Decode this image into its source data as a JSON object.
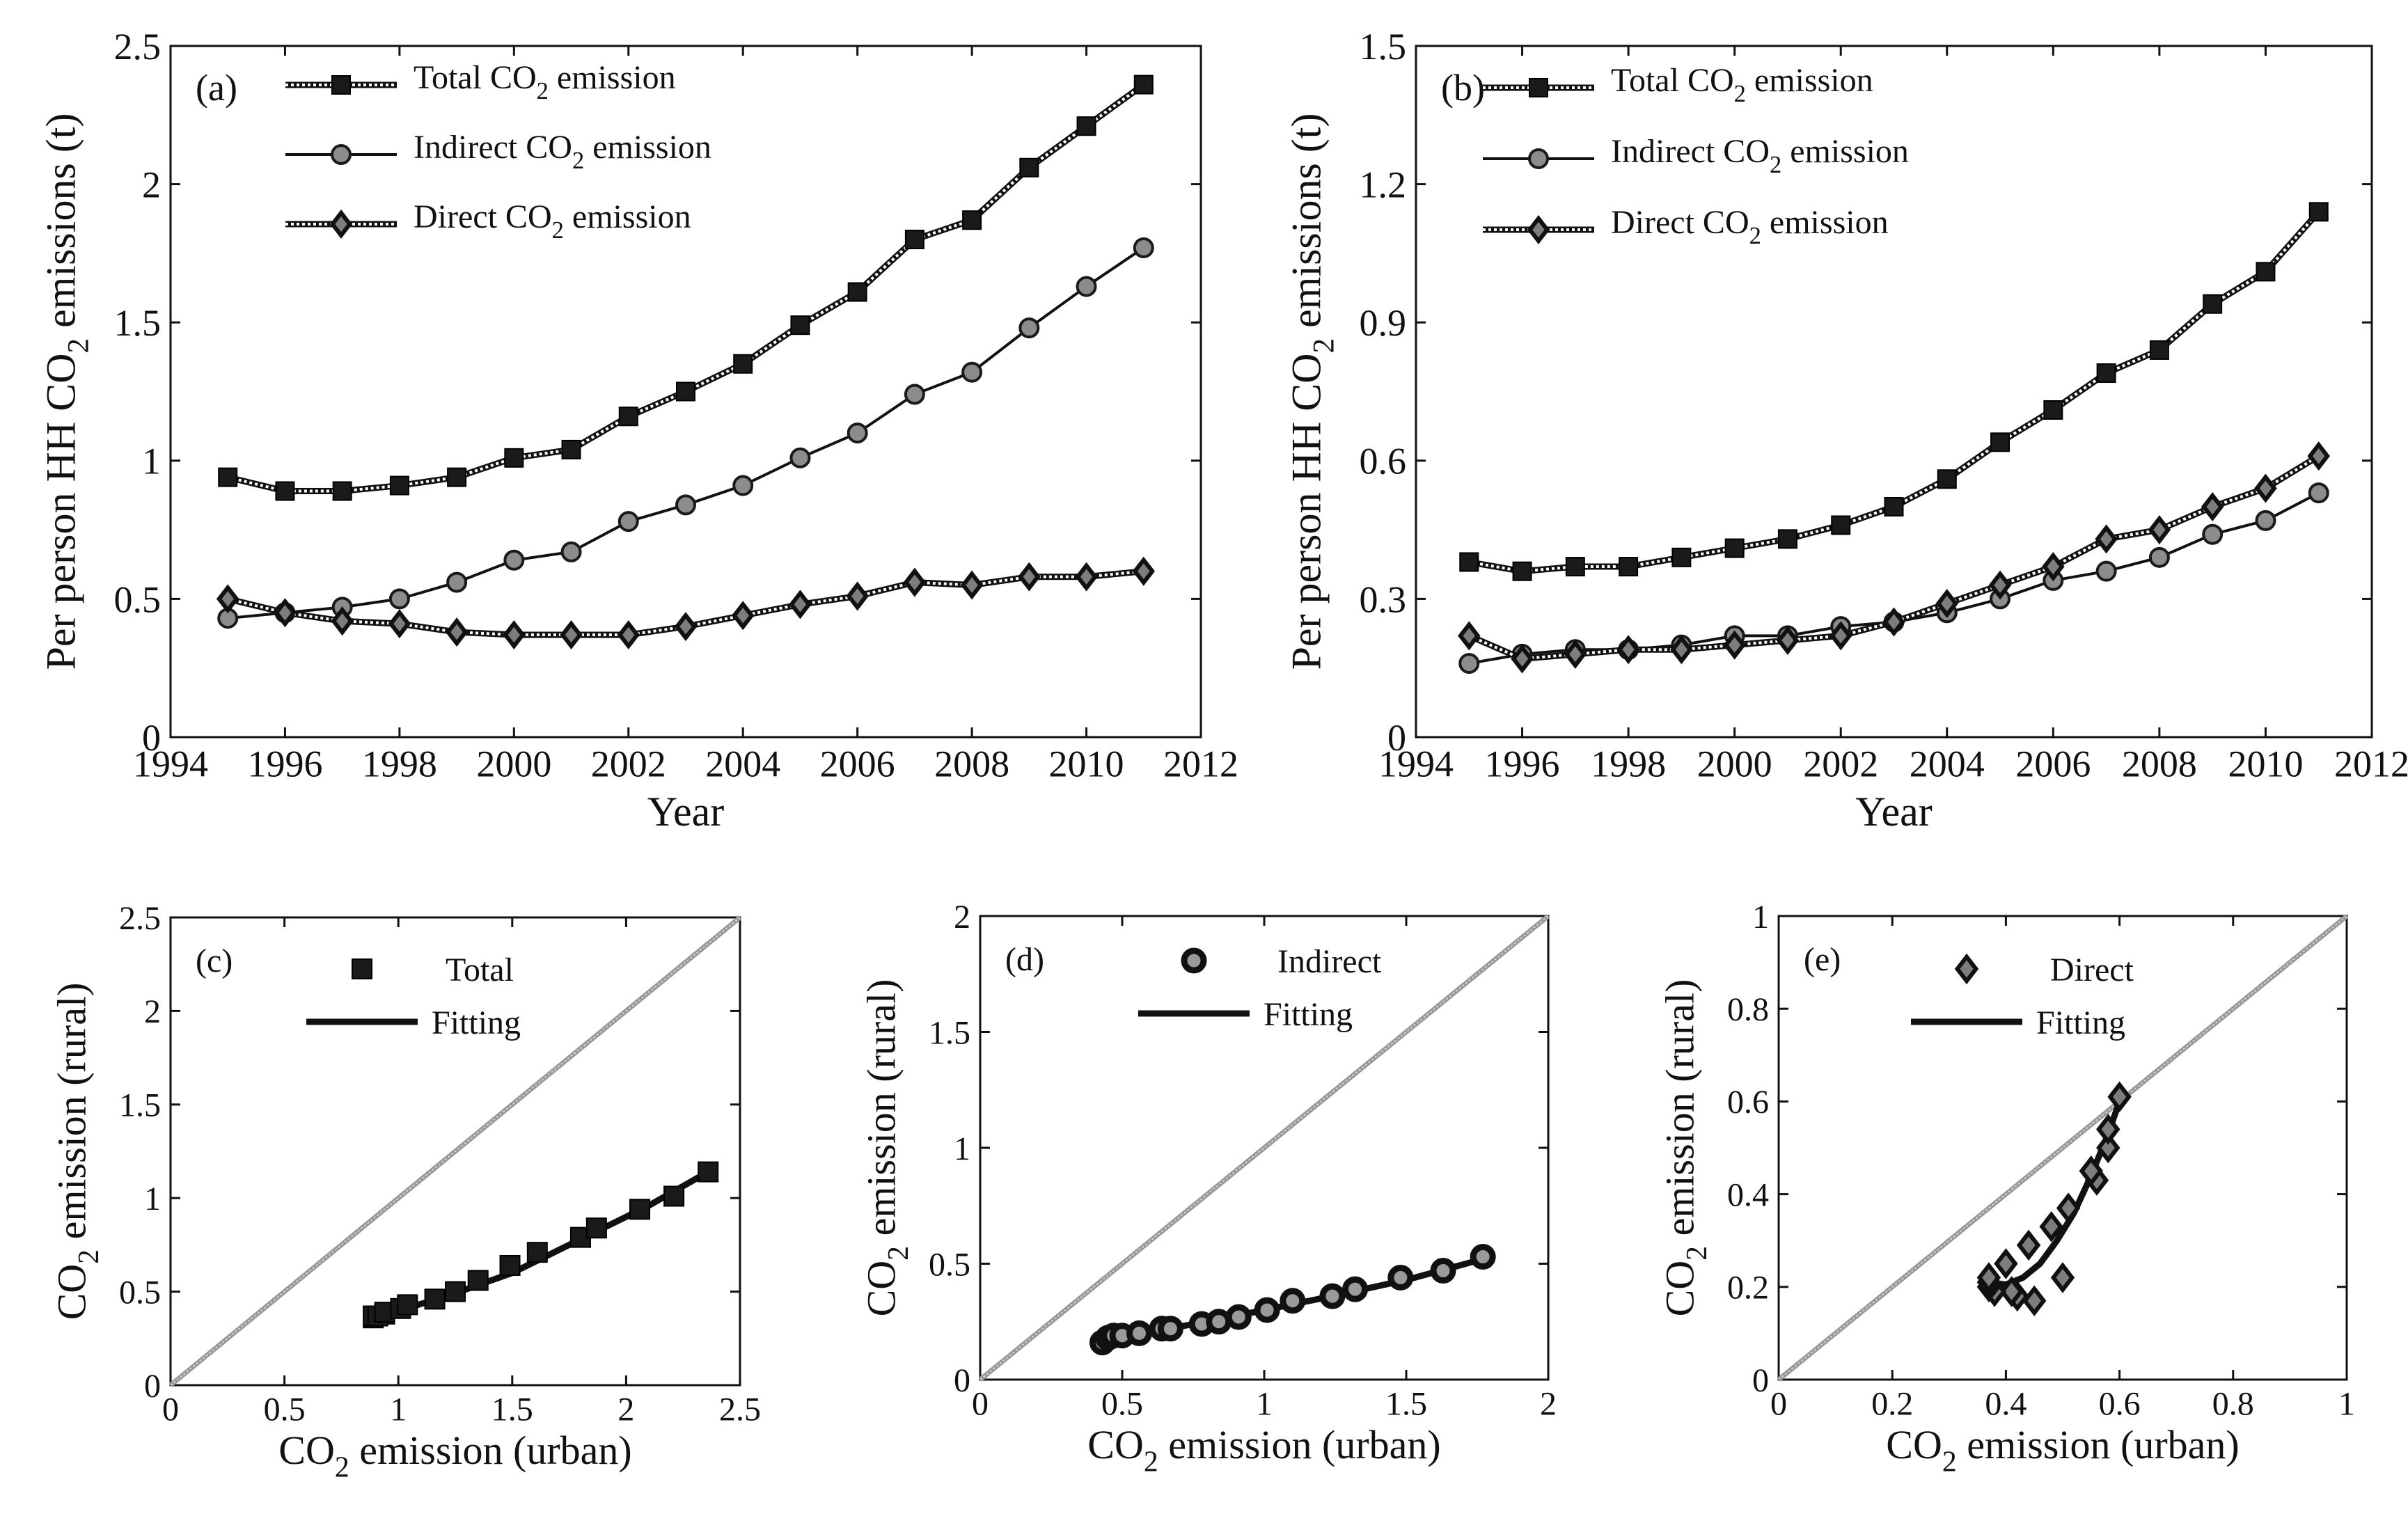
{
  "chart_data": [
    {
      "id": "a",
      "type": "line",
      "panel_label": "(a)",
      "xlabel": "Year",
      "ylabel": "Per person HH CO2 emissions (t)",
      "ylabel_parts": [
        "Per person HH CO",
        "2",
        " emissions (t)"
      ],
      "xlim": [
        1994,
        2012
      ],
      "ylim": [
        0,
        2.5
      ],
      "xticks": [
        1994,
        1996,
        1998,
        2000,
        2002,
        2004,
        2006,
        2008,
        2010,
        2012
      ],
      "yticks": [
        0,
        0.5,
        1,
        1.5,
        2,
        2.5
      ],
      "legend_position": "top-left",
      "x": [
        1995,
        1996,
        1997,
        1998,
        1999,
        2000,
        2001,
        2002,
        2003,
        2004,
        2005,
        2006,
        2007,
        2008,
        2009,
        2010,
        2011
      ],
      "series": [
        {
          "name": "Total CO2 emission",
          "name_parts": [
            "Total CO",
            "2",
            " emission"
          ],
          "marker": "square",
          "line": "dotted",
          "color": "#111111",
          "values": [
            0.94,
            0.89,
            0.89,
            0.91,
            0.94,
            1.01,
            1.04,
            1.16,
            1.25,
            1.35,
            1.49,
            1.61,
            1.8,
            1.87,
            2.06,
            2.21,
            2.36
          ]
        },
        {
          "name": "Indirect CO2 emission",
          "name_parts": [
            "Indirect CO",
            "2",
            " emission"
          ],
          "marker": "circle",
          "line": "solid",
          "color": "#111111",
          "values": [
            0.43,
            0.45,
            0.47,
            0.5,
            0.56,
            0.64,
            0.67,
            0.78,
            0.84,
            0.91,
            1.01,
            1.1,
            1.24,
            1.32,
            1.48,
            1.63,
            1.77
          ]
        },
        {
          "name": "Direct CO2 emission",
          "name_parts": [
            "Direct CO",
            "2",
            " emission"
          ],
          "marker": "diamond",
          "line": "dotted",
          "color": "#111111",
          "values": [
            0.5,
            0.45,
            0.42,
            0.41,
            0.38,
            0.37,
            0.37,
            0.37,
            0.4,
            0.44,
            0.48,
            0.51,
            0.56,
            0.55,
            0.58,
            0.58,
            0.6
          ]
        }
      ]
    },
    {
      "id": "b",
      "type": "line",
      "panel_label": "(b)",
      "xlabel": "Year",
      "ylabel": "Per person HH CO2 emissions (t)",
      "ylabel_parts": [
        "Per person HH CO",
        "2",
        " emissions (t)"
      ],
      "xlim": [
        1994,
        2012
      ],
      "ylim": [
        0,
        1.5
      ],
      "xticks": [
        1994,
        1996,
        1998,
        2000,
        2002,
        2004,
        2006,
        2008,
        2010,
        2012
      ],
      "yticks": [
        0,
        0.3,
        0.6,
        0.9,
        1.2,
        1.5
      ],
      "ytick_labels": [
        "0",
        "0.3",
        "0.6",
        "0.9",
        "1.2",
        "1.5"
      ],
      "legend_position": "top-left",
      "x": [
        1995,
        1996,
        1997,
        1998,
        1999,
        2000,
        2001,
        2002,
        2003,
        2004,
        2005,
        2006,
        2007,
        2008,
        2009,
        2010,
        2011
      ],
      "series": [
        {
          "name": "Total CO2 emission",
          "name_parts": [
            "Total CO",
            "2",
            " emission"
          ],
          "marker": "square",
          "line": "dotted",
          "color": "#111111",
          "values": [
            0.38,
            0.36,
            0.37,
            0.37,
            0.39,
            0.41,
            0.43,
            0.46,
            0.5,
            0.56,
            0.64,
            0.71,
            0.79,
            0.84,
            0.94,
            1.01,
            1.14
          ]
        },
        {
          "name": "Indirect CO2 emission",
          "name_parts": [
            "Indirect CO",
            "2",
            " emission"
          ],
          "marker": "circle",
          "line": "solid",
          "color": "#111111",
          "values": [
            0.16,
            0.18,
            0.19,
            0.19,
            0.2,
            0.22,
            0.22,
            0.24,
            0.25,
            0.27,
            0.3,
            0.34,
            0.36,
            0.39,
            0.44,
            0.47,
            0.53
          ]
        },
        {
          "name": "Direct CO2 emission",
          "name_parts": [
            "Direct CO",
            "2",
            " emission"
          ],
          "marker": "diamond",
          "line": "dotted",
          "color": "#111111",
          "values": [
            0.22,
            0.17,
            0.18,
            0.19,
            0.19,
            0.2,
            0.21,
            0.22,
            0.25,
            0.29,
            0.33,
            0.37,
            0.43,
            0.45,
            0.5,
            0.54,
            0.61
          ]
        }
      ]
    },
    {
      "id": "c",
      "type": "scatter",
      "panel_label": "(c)",
      "xlabel": "CO2 emission (urban)",
      "xlabel_parts": [
        "CO",
        "2",
        " emission (urban)"
      ],
      "ylabel": "CO2 emission (rural)",
      "ylabel_parts": [
        "CO",
        "2",
        " emission (rural)"
      ],
      "xlim": [
        0,
        2.5
      ],
      "ylim": [
        0,
        2.5
      ],
      "xticks": [
        0,
        0.5,
        1,
        1.5,
        2,
        2.5
      ],
      "yticks": [
        0,
        0.5,
        1,
        1.5,
        2,
        2.5
      ],
      "legend_position": "top-left",
      "diagonal": true,
      "points": {
        "name": "Total",
        "marker": "square",
        "x": [
          0.94,
          0.89,
          0.89,
          0.91,
          0.94,
          1.01,
          1.04,
          1.16,
          1.25,
          1.35,
          1.49,
          1.61,
          1.8,
          1.87,
          2.06,
          2.21,
          2.36
        ],
        "y": [
          0.38,
          0.36,
          0.37,
          0.37,
          0.39,
          0.41,
          0.43,
          0.46,
          0.5,
          0.56,
          0.64,
          0.71,
          0.79,
          0.84,
          0.94,
          1.01,
          1.14
        ]
      },
      "fit": {
        "name": "Fitting",
        "x": [
          0.89,
          1.2,
          1.5,
          1.8,
          2.1,
          2.36
        ],
        "y": [
          0.36,
          0.47,
          0.6,
          0.78,
          0.96,
          1.14
        ]
      }
    },
    {
      "id": "d",
      "type": "scatter",
      "panel_label": "(d)",
      "xlabel": "CO2 emission (urban)",
      "xlabel_parts": [
        "CO",
        "2",
        " emission (urban)"
      ],
      "ylabel": "CO2 emission (rural)",
      "ylabel_parts": [
        "CO",
        "2",
        " emission (rural)"
      ],
      "xlim": [
        0,
        2
      ],
      "ylim": [
        0,
        2
      ],
      "xticks": [
        0,
        0.5,
        1,
        1.5,
        2
      ],
      "yticks": [
        0,
        0.5,
        1,
        1.5,
        2
      ],
      "legend_position": "top-left",
      "diagonal": true,
      "points": {
        "name": "Indirect",
        "marker": "ring",
        "x": [
          0.43,
          0.45,
          0.47,
          0.5,
          0.56,
          0.64,
          0.67,
          0.78,
          0.84,
          0.91,
          1.01,
          1.1,
          1.24,
          1.32,
          1.48,
          1.63,
          1.77
        ],
        "y": [
          0.16,
          0.18,
          0.19,
          0.19,
          0.2,
          0.22,
          0.22,
          0.24,
          0.25,
          0.27,
          0.3,
          0.34,
          0.36,
          0.39,
          0.44,
          0.47,
          0.53
        ]
      },
      "fit": {
        "name": "Fitting",
        "x": [
          0.43,
          0.8,
          1.2,
          1.5,
          1.77
        ],
        "y": [
          0.17,
          0.25,
          0.35,
          0.43,
          0.52
        ]
      }
    },
    {
      "id": "e",
      "type": "scatter",
      "panel_label": "(e)",
      "xlabel": "CO2 emission (urban)",
      "xlabel_parts": [
        "CO",
        "2",
        " emission (urban)"
      ],
      "ylabel": "CO2 emission (rural)",
      "ylabel_parts": [
        "CO",
        "2",
        " emission (rural)"
      ],
      "xlim": [
        0,
        1
      ],
      "ylim": [
        0,
        1
      ],
      "xticks": [
        0,
        0.2,
        0.4,
        0.6,
        0.8,
        1
      ],
      "yticks": [
        0,
        0.2,
        0.4,
        0.6,
        0.8,
        1
      ],
      "legend_position": "top-left",
      "diagonal": true,
      "points": {
        "name": "Direct",
        "marker": "diamond",
        "x": [
          0.5,
          0.45,
          0.42,
          0.41,
          0.38,
          0.37,
          0.37,
          0.37,
          0.4,
          0.44,
          0.48,
          0.51,
          0.56,
          0.55,
          0.58,
          0.58,
          0.6
        ],
        "y": [
          0.22,
          0.17,
          0.18,
          0.19,
          0.19,
          0.2,
          0.21,
          0.22,
          0.25,
          0.29,
          0.33,
          0.37,
          0.43,
          0.45,
          0.5,
          0.54,
          0.61
        ]
      },
      "fit": {
        "name": "Fitting",
        "x": [
          0.37,
          0.4,
          0.43,
          0.46,
          0.49,
          0.52,
          0.55,
          0.58,
          0.6
        ],
        "y": [
          0.21,
          0.205,
          0.22,
          0.25,
          0.3,
          0.36,
          0.44,
          0.53,
          0.6
        ]
      }
    }
  ]
}
